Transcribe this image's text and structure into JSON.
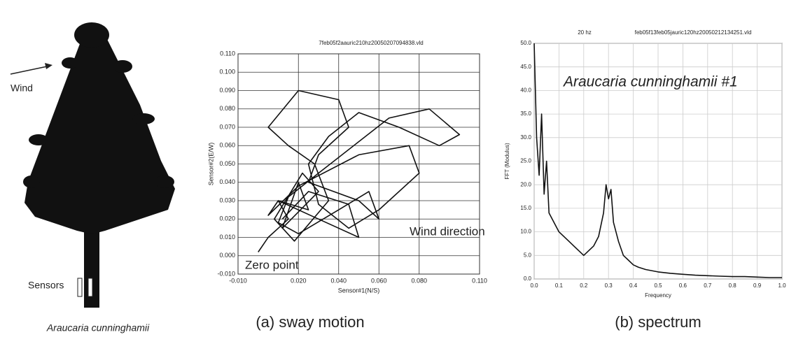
{
  "figure": {
    "wind_label": "Wind",
    "sensors_label": "Sensors",
    "species_label": "Araucaria cunninghamii"
  },
  "chart_data": [
    {
      "type": "line",
      "title": "7feb05f2aauric210hz20050207094838.vld",
      "x_label": "Sensor#1(N/S)",
      "y_label": "Sensor#2(E/W)",
      "annotations": [
        "Wind direction",
        "Zero point"
      ],
      "caption": "(a) sway motion",
      "grid": true,
      "color": "#111111",
      "xlim": [
        -0.01,
        0.11
      ],
      "xticks": [
        {
          "value": -0.01,
          "label": "-0.010"
        },
        {
          "value": 0.02,
          "label": "0.020"
        },
        {
          "value": 0.04,
          "label": "0.040"
        },
        {
          "value": 0.06,
          "label": "0.060"
        },
        {
          "value": 0.08,
          "label": "0.080"
        },
        {
          "value": 0.11,
          "label": "0.110"
        }
      ],
      "ylim": [
        -0.01,
        0.11
      ],
      "yticks": [
        {
          "value": -0.01,
          "label": "-0.010"
        },
        {
          "value": 0,
          "label": "0.000"
        },
        {
          "value": 0.01,
          "label": "0.010"
        },
        {
          "value": 0.02,
          "label": "0.020"
        },
        {
          "value": 0.03,
          "label": "0.030"
        },
        {
          "value": 0.04,
          "label": "0.040"
        },
        {
          "value": 0.05,
          "label": "0.050"
        },
        {
          "value": 0.06,
          "label": "0.060"
        },
        {
          "value": 0.07,
          "label": "0.070"
        },
        {
          "value": 0.08,
          "label": "0.080"
        },
        {
          "value": 0.09,
          "label": "0.090"
        },
        {
          "value": 0.1,
          "label": "0.100"
        },
        {
          "value": 0.11,
          "label": "0.110"
        }
      ],
      "x": [
        0,
        0.005,
        0.015,
        0.01,
        0.025,
        0.02,
        0.012,
        0.03,
        0.022,
        0.008,
        0.018,
        0.035,
        0.028,
        0.015,
        0.005,
        0.02,
        0.04,
        0.045,
        0.03,
        0.025,
        0.05,
        0.06,
        0.055,
        0.04,
        0.02,
        0.01,
        0.015,
        0.03,
        0.065,
        0.085,
        0.1,
        0.09,
        0.07,
        0.05,
        0.035,
        0.025,
        0.03,
        0.045,
        0.06,
        0.08,
        0.075,
        0.05,
        0.02,
        0.005,
        0.01,
        0.03,
        0.05,
        0.045,
        0.025,
        0.012
      ],
      "values": [
        0.002,
        0.01,
        0.02,
        0.03,
        0.025,
        0.04,
        0.015,
        0.035,
        0.045,
        0.02,
        0.008,
        0.03,
        0.05,
        0.06,
        0.07,
        0.09,
        0.085,
        0.07,
        0.055,
        0.04,
        0.03,
        0.02,
        0.035,
        0.025,
        0.012,
        0.018,
        0.032,
        0.045,
        0.075,
        0.08,
        0.066,
        0.06,
        0.07,
        0.078,
        0.065,
        0.05,
        0.028,
        0.015,
        0.025,
        0.045,
        0.06,
        0.055,
        0.038,
        0.022,
        0.03,
        0.02,
        0.01,
        0.028,
        0.035,
        0.02
      ]
    },
    {
      "type": "line",
      "title": "feb05f13feb05jauric120hz20050212134251.vld",
      "subtitle": "20 hz",
      "x_label": "Frequency",
      "y_label": "FFT (Modulus)",
      "annotations": [
        "Araucaria cunninghamii #1"
      ],
      "caption": "(b) spectrum",
      "grid": true,
      "color": "#111111",
      "xlim": [
        0,
        1
      ],
      "xticks": [
        {
          "value": 0,
          "label": "0.0"
        },
        0.1,
        0.2,
        0.3,
        0.4,
        0.5,
        0.6,
        0.7,
        0.8,
        0.9,
        {
          "value": 1,
          "label": "1.0"
        }
      ],
      "ylim": [
        0,
        50
      ],
      "yticks": [
        {
          "value": 0,
          "label": "0.0"
        },
        {
          "value": 5,
          "label": "5.0"
        },
        {
          "value": 10,
          "label": "10.0"
        },
        {
          "value": 15,
          "label": "15.0"
        },
        {
          "value": 20,
          "label": "20.0"
        },
        {
          "value": 25,
          "label": "25.0"
        },
        {
          "value": 30,
          "label": "30.0"
        },
        {
          "value": 35,
          "label": "35.0"
        },
        {
          "value": 40,
          "label": "40.0"
        },
        {
          "value": 45,
          "label": "45.0"
        },
        {
          "value": 50,
          "label": "50.0"
        }
      ],
      "x": [
        0,
        0.01,
        0.02,
        0.03,
        0.04,
        0.05,
        0.06,
        0.08,
        0.1,
        0.12,
        0.14,
        0.16,
        0.18,
        0.2,
        0.22,
        0.24,
        0.26,
        0.28,
        0.29,
        0.3,
        0.31,
        0.32,
        0.34,
        0.36,
        0.38,
        0.4,
        0.42,
        0.45,
        0.5,
        0.55,
        0.6,
        0.65,
        0.7,
        0.75,
        0.8,
        0.85,
        0.9,
        0.95,
        1.0
      ],
      "values": [
        50,
        30,
        22,
        35,
        18,
        25,
        14,
        12,
        10,
        9,
        8,
        7,
        6,
        5,
        6,
        7,
        9,
        14,
        20,
        17,
        19,
        12,
        8,
        5,
        4,
        3,
        2.5,
        2,
        1.5,
        1.2,
        1,
        0.8,
        0.7,
        0.6,
        0.5,
        0.5,
        0.4,
        0.3,
        0.3
      ]
    }
  ]
}
